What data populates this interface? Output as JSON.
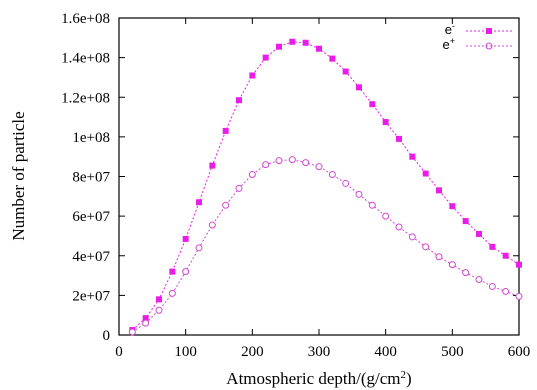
{
  "chart_data": {
    "type": "line",
    "xlabel": "Atmospheric depth/(g/cm",
    "xlabel_superscript": "2",
    "xlabel_suffix": ")",
    "ylabel": "Number of particle",
    "xlim": [
      0,
      600
    ],
    "ylim": [
      0,
      160000000
    ],
    "x_ticks": [
      0,
      100,
      200,
      300,
      400,
      500,
      600
    ],
    "x_tick_labels": [
      "0",
      "100",
      "200",
      "300",
      "400",
      "500",
      "600"
    ],
    "y_ticks": [
      0,
      20000000,
      40000000,
      60000000,
      80000000,
      100000000,
      120000000,
      140000000,
      160000000
    ],
    "y_tick_labels": [
      "0",
      "2e+07",
      "4e+07",
      "6e+07",
      "8e+07",
      "1e+08",
      "1.2e+08",
      "1.4e+08",
      "1.6e+08"
    ],
    "grid": false,
    "legend_position": "top-right",
    "x": [
      20,
      40,
      60,
      80,
      100,
      120,
      140,
      160,
      180,
      200,
      220,
      240,
      260,
      280,
      300,
      320,
      340,
      360,
      380,
      400,
      420,
      440,
      460,
      480,
      500,
      520,
      540,
      560,
      580,
      600
    ],
    "series": [
      {
        "name": "e",
        "name_superscript": "-",
        "color": "#e81ee8",
        "marker": "filled-square",
        "values": [
          2500000,
          8500000,
          18000000,
          32000000,
          48500000,
          67000000,
          85500000,
          103000000,
          118500000,
          131000000,
          140000000,
          145500000,
          148000000,
          147500000,
          144500000,
          139500000,
          133000000,
          125000000,
          116500000,
          107500000,
          99000000,
          90000000,
          81500000,
          73000000,
          65000000,
          57500000,
          51000000,
          44500000,
          40000000,
          35500000
        ]
      },
      {
        "name": "e",
        "name_superscript": "+",
        "color": "#d04ad0",
        "marker": "open-circle",
        "values": [
          1500000,
          6000000,
          12500000,
          21000000,
          32000000,
          44000000,
          55500000,
          65500000,
          74000000,
          81000000,
          86000000,
          88000000,
          88500000,
          87000000,
          85000000,
          81000000,
          76500000,
          71000000,
          65500000,
          60000000,
          54500000,
          49500000,
          44500000,
          39500000,
          35500000,
          31500000,
          28000000,
          24500000,
          22000000,
          19500000
        ]
      }
    ]
  }
}
